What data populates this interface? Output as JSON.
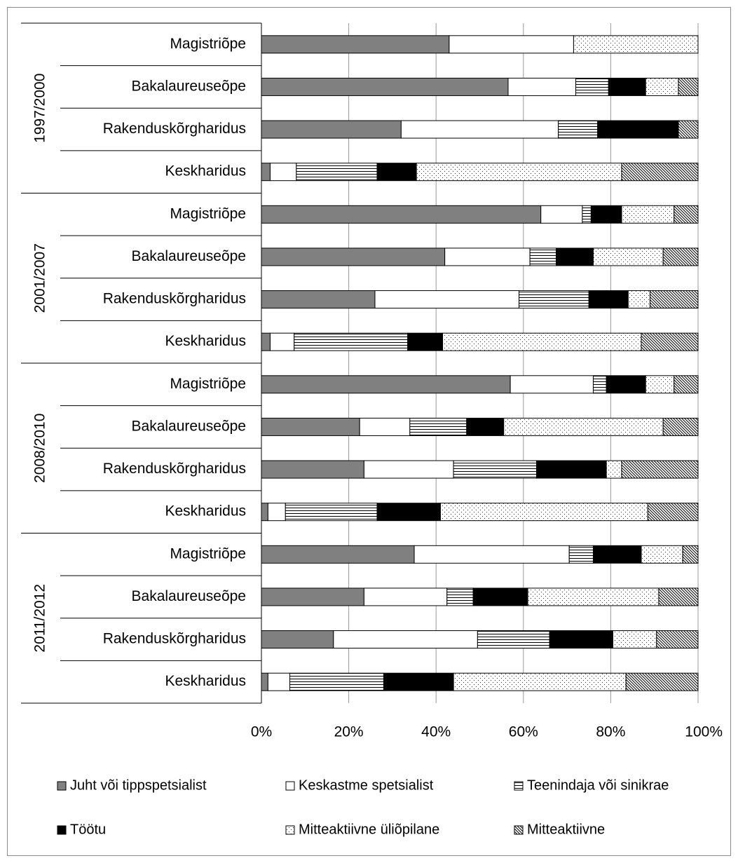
{
  "chart_data": {
    "type": "bar",
    "orientation": "horizontal",
    "stacked": "percent",
    "groups": [
      {
        "label": "1997/2000",
        "categories": [
          {
            "label": "Magistriõpe",
            "values": [
              43,
              28.5,
              0,
              0,
              28.5,
              0
            ]
          },
          {
            "label": "Bakalaureuseõpe",
            "values": [
              56.5,
              15.5,
              7.5,
              8.5,
              7.5,
              4.5
            ]
          },
          {
            "label": "Rakenduskõrgharidus",
            "values": [
              32,
              36,
              9,
              18.5,
              0,
              4.5
            ]
          },
          {
            "label": "Keskharidus",
            "values": [
              2,
              6,
              18.5,
              9,
              47,
              17.5
            ]
          }
        ]
      },
      {
        "label": "2001/2007",
        "categories": [
          {
            "label": "Magistriõpe",
            "values": [
              64,
              9.5,
              2,
              7,
              12,
              5.5
            ]
          },
          {
            "label": "Bakalaureuseõpe",
            "values": [
              42,
              19.5,
              6,
              8.5,
              16,
              8
            ]
          },
          {
            "label": "Rakenduskõrgharidus",
            "values": [
              26,
              33,
              16,
              9,
              5,
              11
            ]
          },
          {
            "label": "Keskharidus",
            "values": [
              2,
              5.5,
              26,
              8,
              45.5,
              13
            ]
          }
        ]
      },
      {
        "label": "2008/2010",
        "categories": [
          {
            "label": "Magistriõpe",
            "values": [
              57,
              19,
              3,
              9,
              6.5,
              5.5
            ]
          },
          {
            "label": "Bakalaureuseõpe",
            "values": [
              22.5,
              11.5,
              13,
              8.5,
              36.5,
              8
            ]
          },
          {
            "label": "Rakenduskõrgharidus",
            "values": [
              23.5,
              20.5,
              19,
              16,
              3.5,
              17.5
            ]
          },
          {
            "label": "Keskharidus",
            "values": [
              1.5,
              4,
              21,
              14.5,
              47.5,
              11.5
            ]
          }
        ]
      },
      {
        "label": "2011/2012",
        "categories": [
          {
            "label": "Magistriõpe",
            "values": [
              35,
              35.5,
              5.5,
              11,
              9.5,
              3.5
            ]
          },
          {
            "label": "Bakalaureuseõpe",
            "values": [
              23.5,
              19,
              6,
              12.5,
              30,
              9
            ]
          },
          {
            "label": "Rakenduskõrgharidus",
            "values": [
              16.5,
              33,
              16.5,
              14.5,
              10,
              9.5
            ]
          },
          {
            "label": "Keskharidus",
            "values": [
              1.5,
              5,
              21.5,
              16,
              39.5,
              16.5
            ]
          }
        ]
      }
    ],
    "series": [
      {
        "name": "Juht või tippspetsialist",
        "pattern": "solid-gray",
        "color": "#808080"
      },
      {
        "name": "Keskastme spetsialist",
        "pattern": "white",
        "color": "#ffffff"
      },
      {
        "name": "Teenindaja või sinikrae",
        "pattern": "horizontal-lines",
        "color": "#ffffff"
      },
      {
        "name": "Töötu",
        "pattern": "solid-black",
        "color": "#000000"
      },
      {
        "name": "Mitteaktiivne üliõpilane",
        "pattern": "dots",
        "color": "#ffffff"
      },
      {
        "name": "Mitteaktiivne",
        "pattern": "diagonal-lines",
        "color": "#ffffff"
      }
    ],
    "xlim": [
      0,
      100
    ],
    "xticks": [
      "0%",
      "20%",
      "40%",
      "60%",
      "80%",
      "100%"
    ],
    "grid": "vertical",
    "legend_position": "bottom"
  }
}
